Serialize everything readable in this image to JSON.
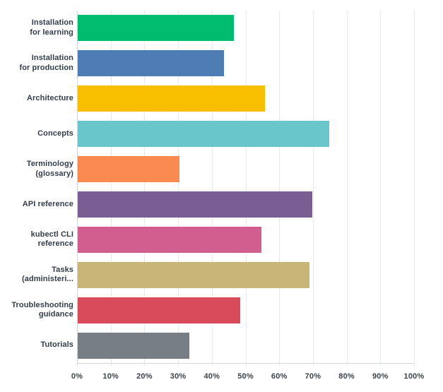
{
  "chart_data": {
    "type": "bar",
    "orientation": "horizontal",
    "title": "",
    "xlabel": "",
    "ylabel": "",
    "xlim": [
      0,
      100
    ],
    "grid": true,
    "legend": false,
    "x_tick_labels": [
      "0%",
      "10%",
      "20%",
      "30%",
      "40%",
      "50%",
      "60%",
      "70%",
      "80%",
      "90%",
      "100%"
    ],
    "categories": [
      "Installation for learning",
      "Installation for production",
      "Architecture",
      "Concepts",
      "Terminology (glossary)",
      "API reference",
      "kubectl CLI reference",
      "Tasks (administeri...",
      "Troubleshooting guidance",
      "Tutorials"
    ],
    "category_display_lines": [
      [
        "Installation",
        "for learning"
      ],
      [
        "Installation",
        "for production"
      ],
      [
        "Architecture"
      ],
      [
        "Concepts"
      ],
      [
        "Terminology",
        "(glossary)"
      ],
      [
        "API reference"
      ],
      [
        "kubectl CLI",
        "reference"
      ],
      [
        "Tasks",
        "(administeri..."
      ],
      [
        "Troubleshooting",
        "guidance"
      ],
      [
        "Tutorials"
      ]
    ],
    "values": [
      46.3,
      43.4,
      55.6,
      74.7,
      30.2,
      69.7,
      54.6,
      68.7,
      48.3,
      33.2
    ],
    "bar_colors": [
      "#00bc6f",
      "#4e7cb5",
      "#f8be00",
      "#69c6cb",
      "#fb8a50",
      "#7a5d93",
      "#d25e90",
      "#c8b577",
      "#d94b5b",
      "#777e86"
    ]
  },
  "colors": {
    "background": "#ffffff",
    "axis_line": "#d5d8da",
    "gridline": "#eaebec",
    "category_label_text": "#333d4b",
    "tick_label_text": "#3b434c"
  }
}
